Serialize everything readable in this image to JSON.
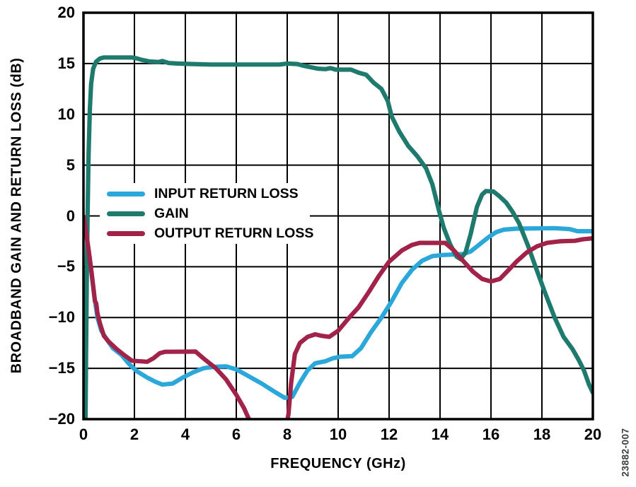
{
  "figure_code": "23882-007",
  "chart_data": {
    "type": "line",
    "xlabel": "FREQUENCY (GHz)",
    "ylabel": "BROADBAND GAIN AND RETURN LOSS (dB)",
    "xlim": [
      0,
      20
    ],
    "ylim": [
      -20,
      20
    ],
    "x_ticks": [
      0,
      2,
      4,
      6,
      8,
      10,
      12,
      14,
      16,
      18,
      20
    ],
    "y_ticks": [
      20,
      15,
      10,
      5,
      0,
      -5,
      -10,
      -15,
      -20
    ],
    "y_tick_labels": [
      "20",
      "15",
      "10",
      "5",
      "0",
      "−5",
      "−10",
      "−15",
      "−20"
    ],
    "grid": true,
    "legend_position": "upper-left-inside",
    "axis_color": "#000000",
    "series": [
      {
        "name": "INPUT RETURN LOSS",
        "color": "#2BA7DA",
        "points": [
          [
            0.02,
            -0.2
          ],
          [
            0.1,
            -1.6
          ],
          [
            0.2,
            -3.4
          ],
          [
            0.3,
            -5.3
          ],
          [
            0.42,
            -7.8
          ],
          [
            0.55,
            -10.0
          ],
          [
            0.7,
            -11.3
          ],
          [
            0.9,
            -12.1
          ],
          [
            1.15,
            -13.0
          ],
          [
            1.5,
            -13.7
          ],
          [
            1.8,
            -14.6
          ],
          [
            2.1,
            -15.3
          ],
          [
            2.5,
            -15.9
          ],
          [
            2.8,
            -16.3
          ],
          [
            3.1,
            -16.6
          ],
          [
            3.5,
            -16.5
          ],
          [
            3.9,
            -15.9
          ],
          [
            4.3,
            -15.4
          ],
          [
            4.7,
            -15.0
          ],
          [
            5.1,
            -14.85
          ],
          [
            5.6,
            -14.8
          ],
          [
            6.0,
            -15.1
          ],
          [
            6.5,
            -15.8
          ],
          [
            7.0,
            -16.5
          ],
          [
            7.5,
            -17.3
          ],
          [
            7.9,
            -17.9
          ],
          [
            8.2,
            -17.8
          ],
          [
            8.5,
            -16.4
          ],
          [
            8.8,
            -15.2
          ],
          [
            9.1,
            -14.5
          ],
          [
            9.5,
            -14.3
          ],
          [
            9.8,
            -14.0
          ],
          [
            10.1,
            -13.85
          ],
          [
            10.55,
            -13.8
          ],
          [
            10.9,
            -13.0
          ],
          [
            11.3,
            -11.4
          ],
          [
            11.7,
            -10.0
          ],
          [
            12.1,
            -8.4
          ],
          [
            12.5,
            -6.6
          ],
          [
            12.9,
            -5.3
          ],
          [
            13.3,
            -4.4
          ],
          [
            13.7,
            -3.95
          ],
          [
            14.1,
            -3.85
          ],
          [
            14.9,
            -3.75
          ],
          [
            15.2,
            -3.5
          ],
          [
            15.5,
            -2.9
          ],
          [
            15.9,
            -2.1
          ],
          [
            16.2,
            -1.6
          ],
          [
            16.5,
            -1.35
          ],
          [
            17.0,
            -1.25
          ],
          [
            18.5,
            -1.2
          ],
          [
            19.1,
            -1.3
          ],
          [
            19.4,
            -1.5
          ],
          [
            20,
            -1.5
          ]
        ]
      },
      {
        "name": "GAIN",
        "color": "#1F7A6E",
        "points": [
          [
            0.08,
            -20
          ],
          [
            0.1,
            -14
          ],
          [
            0.13,
            -6
          ],
          [
            0.16,
            0
          ],
          [
            0.2,
            6
          ],
          [
            0.25,
            10.5
          ],
          [
            0.3,
            13
          ],
          [
            0.38,
            14.5
          ],
          [
            0.5,
            15.2
          ],
          [
            0.65,
            15.5
          ],
          [
            0.8,
            15.6
          ],
          [
            1.9,
            15.6
          ],
          [
            2.1,
            15.5
          ],
          [
            2.3,
            15.35
          ],
          [
            2.6,
            15.2
          ],
          [
            2.95,
            15.15
          ],
          [
            3.1,
            15.25
          ],
          [
            3.35,
            15.05
          ],
          [
            3.7,
            15.0
          ],
          [
            4.3,
            14.95
          ],
          [
            5.0,
            14.9
          ],
          [
            7.7,
            14.9
          ],
          [
            8.0,
            15.0
          ],
          [
            8.4,
            14.95
          ],
          [
            8.6,
            14.8
          ],
          [
            8.9,
            14.65
          ],
          [
            9.2,
            14.5
          ],
          [
            9.5,
            14.45
          ],
          [
            9.7,
            14.55
          ],
          [
            9.9,
            14.4
          ],
          [
            10.5,
            14.4
          ],
          [
            10.8,
            14.1
          ],
          [
            11.1,
            13.9
          ],
          [
            11.4,
            13.1
          ],
          [
            11.7,
            12.5
          ],
          [
            11.95,
            11.3
          ],
          [
            12.1,
            9.8
          ],
          [
            12.4,
            8.3
          ],
          [
            12.75,
            6.9
          ],
          [
            13.1,
            5.9
          ],
          [
            13.45,
            4.7
          ],
          [
            13.7,
            3.1
          ],
          [
            13.95,
            0.6
          ],
          [
            14.15,
            -1.2
          ],
          [
            14.4,
            -2.8
          ],
          [
            14.65,
            -4.0
          ],
          [
            14.8,
            -4.25
          ],
          [
            15.0,
            -3.6
          ],
          [
            15.2,
            -1.8
          ],
          [
            15.45,
            0.9
          ],
          [
            15.65,
            2.1
          ],
          [
            15.8,
            2.45
          ],
          [
            16.1,
            2.4
          ],
          [
            16.35,
            1.9
          ],
          [
            16.6,
            1.3
          ],
          [
            16.85,
            0.4
          ],
          [
            17.1,
            -0.7
          ],
          [
            17.45,
            -2.9
          ],
          [
            17.75,
            -5.0
          ],
          [
            18.1,
            -7.4
          ],
          [
            18.5,
            -10.0
          ],
          [
            18.85,
            -11.9
          ],
          [
            19.2,
            -13.1
          ],
          [
            19.45,
            -14.2
          ],
          [
            19.65,
            -15.2
          ],
          [
            19.85,
            -16.6
          ],
          [
            20,
            -17.4
          ]
        ]
      },
      {
        "name": "OUTPUT RETURN LOSS",
        "color": "#A2234A",
        "points": [
          [
            0.02,
            -0.1
          ],
          [
            0.1,
            -1.6
          ],
          [
            0.2,
            -3.3
          ],
          [
            0.3,
            -5.2
          ],
          [
            0.4,
            -7.3
          ],
          [
            0.45,
            -8.4
          ],
          [
            0.5,
            -8.6
          ],
          [
            0.55,
            -9.6
          ],
          [
            0.65,
            -10.6
          ],
          [
            0.8,
            -11.8
          ],
          [
            1.0,
            -12.4
          ],
          [
            1.3,
            -13.1
          ],
          [
            1.6,
            -13.7
          ],
          [
            1.9,
            -14.25
          ],
          [
            2.5,
            -14.35
          ],
          [
            2.75,
            -14.0
          ],
          [
            3.0,
            -13.5
          ],
          [
            3.2,
            -13.37
          ],
          [
            4.4,
            -13.35
          ],
          [
            4.75,
            -14.1
          ],
          [
            5.2,
            -15.0
          ],
          [
            5.6,
            -16.1
          ],
          [
            6.0,
            -17.6
          ],
          [
            6.3,
            -18.9
          ],
          [
            6.55,
            -20.3
          ],
          [
            6.9,
            -22.0
          ],
          [
            7.5,
            -23.0
          ],
          [
            7.9,
            -21.5
          ],
          [
            8.05,
            -19.5
          ],
          [
            8.15,
            -16.5
          ],
          [
            8.3,
            -13.6
          ],
          [
            8.5,
            -12.5
          ],
          [
            8.8,
            -11.9
          ],
          [
            9.1,
            -11.65
          ],
          [
            9.35,
            -11.8
          ],
          [
            9.65,
            -11.9
          ],
          [
            10.0,
            -11.3
          ],
          [
            10.4,
            -10.1
          ],
          [
            10.8,
            -9.0
          ],
          [
            11.2,
            -7.5
          ],
          [
            11.6,
            -5.9
          ],
          [
            12.0,
            -4.5
          ],
          [
            12.5,
            -3.4
          ],
          [
            12.9,
            -2.85
          ],
          [
            13.2,
            -2.65
          ],
          [
            14.2,
            -2.65
          ],
          [
            14.55,
            -3.4
          ],
          [
            14.9,
            -4.4
          ],
          [
            15.3,
            -5.5
          ],
          [
            15.65,
            -6.2
          ],
          [
            16.0,
            -6.45
          ],
          [
            16.35,
            -6.2
          ],
          [
            16.7,
            -5.3
          ],
          [
            17.0,
            -4.5
          ],
          [
            17.4,
            -3.6
          ],
          [
            17.8,
            -3.0
          ],
          [
            18.2,
            -2.65
          ],
          [
            18.7,
            -2.5
          ],
          [
            19.3,
            -2.45
          ],
          [
            19.6,
            -2.3
          ],
          [
            20,
            -2.2
          ]
        ]
      }
    ]
  }
}
